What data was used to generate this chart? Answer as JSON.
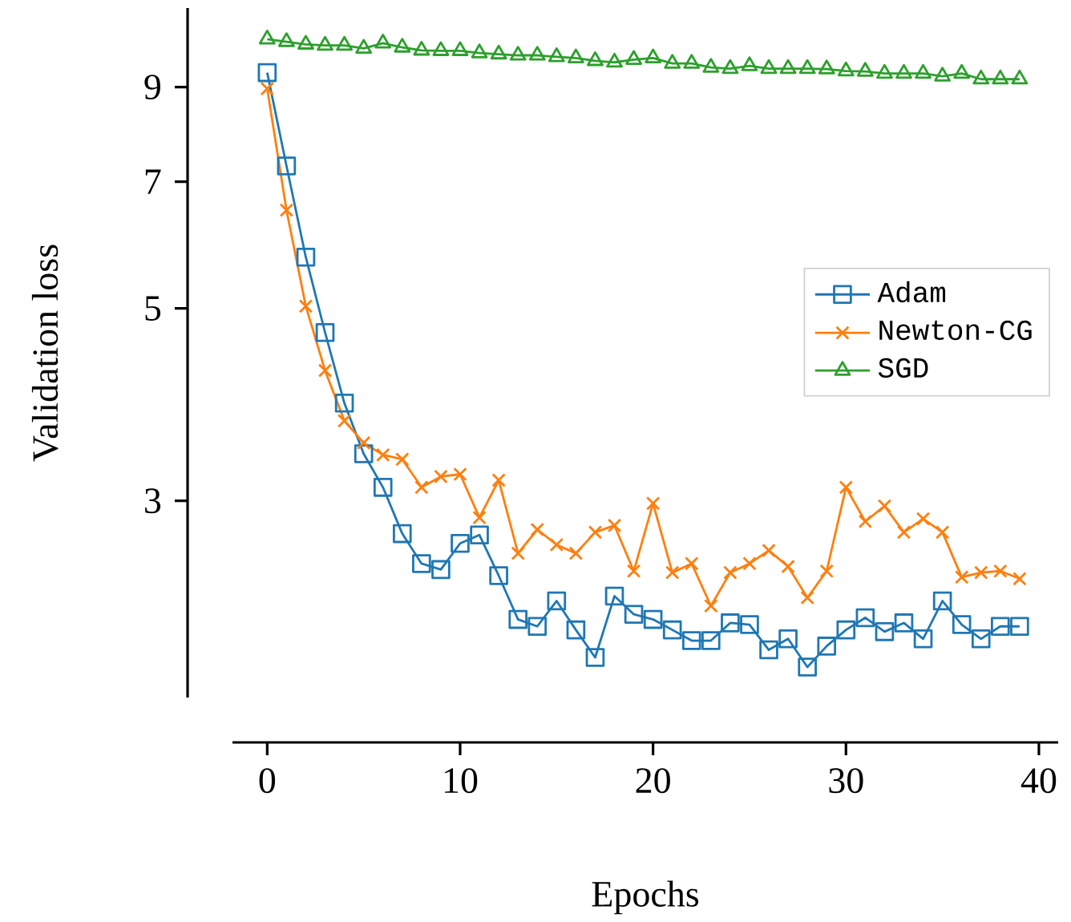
{
  "chart_data": {
    "type": "line",
    "xlabel": "Epochs",
    "ylabel": "Validation loss",
    "x": [
      0,
      1,
      2,
      3,
      4,
      5,
      6,
      7,
      8,
      9,
      10,
      11,
      12,
      13,
      14,
      15,
      16,
      17,
      18,
      19,
      20,
      21,
      22,
      23,
      24,
      25,
      26,
      27,
      28,
      29,
      30,
      31,
      32,
      33,
      34,
      35,
      36,
      37,
      38,
      39
    ],
    "series": [
      {
        "name": "Adam",
        "color": "#1f77b4",
        "marker": "square",
        "values": [
          9.35,
          7.3,
          5.73,
          4.69,
          3.89,
          3.4,
          3.11,
          2.75,
          2.54,
          2.5,
          2.68,
          2.74,
          2.46,
          2.19,
          2.15,
          2.3,
          2.13,
          1.98,
          2.33,
          2.22,
          2.19,
          2.13,
          2.07,
          2.07,
          2.17,
          2.16,
          2.02,
          2.08,
          1.93,
          2.04,
          2.13,
          2.2,
          2.12,
          2.17,
          2.08,
          2.3,
          2.16,
          2.08,
          2.15,
          2.15
        ]
      },
      {
        "name": "Newton-CG",
        "color": "#ff7f0e",
        "marker": "cross",
        "values": [
          8.96,
          6.49,
          5.03,
          4.24,
          3.71,
          3.5,
          3.39,
          3.35,
          3.11,
          3.2,
          3.22,
          2.87,
          3.17,
          2.61,
          2.78,
          2.67,
          2.61,
          2.76,
          2.81,
          2.49,
          2.98,
          2.48,
          2.54,
          2.27,
          2.48,
          2.54,
          2.63,
          2.52,
          2.32,
          2.49,
          3.11,
          2.84,
          2.96,
          2.76,
          2.86,
          2.76,
          2.45,
          2.48,
          2.49,
          2.44
        ]
      },
      {
        "name": "SGD",
        "color": "#2ca02c",
        "marker": "triangle",
        "values": [
          10.22,
          10.15,
          10.08,
          10.05,
          10.05,
          9.97,
          10.11,
          10.0,
          9.92,
          9.91,
          9.91,
          9.85,
          9.82,
          9.79,
          9.79,
          9.75,
          9.72,
          9.65,
          9.61,
          9.68,
          9.72,
          9.58,
          9.58,
          9.48,
          9.45,
          9.52,
          9.45,
          9.45,
          9.45,
          9.44,
          9.39,
          9.38,
          9.33,
          9.33,
          9.33,
          9.26,
          9.33,
          9.19,
          9.19,
          9.19
        ]
      }
    ],
    "log": "y",
    "xlim": [
      -1.8,
      41
    ],
    "ylim": [
      1.78,
      11.1
    ],
    "xticks": [
      0,
      10,
      20,
      30,
      40
    ],
    "yticks": [
      3,
      5,
      7,
      9
    ],
    "legend": "right",
    "line_style": "solid"
  }
}
